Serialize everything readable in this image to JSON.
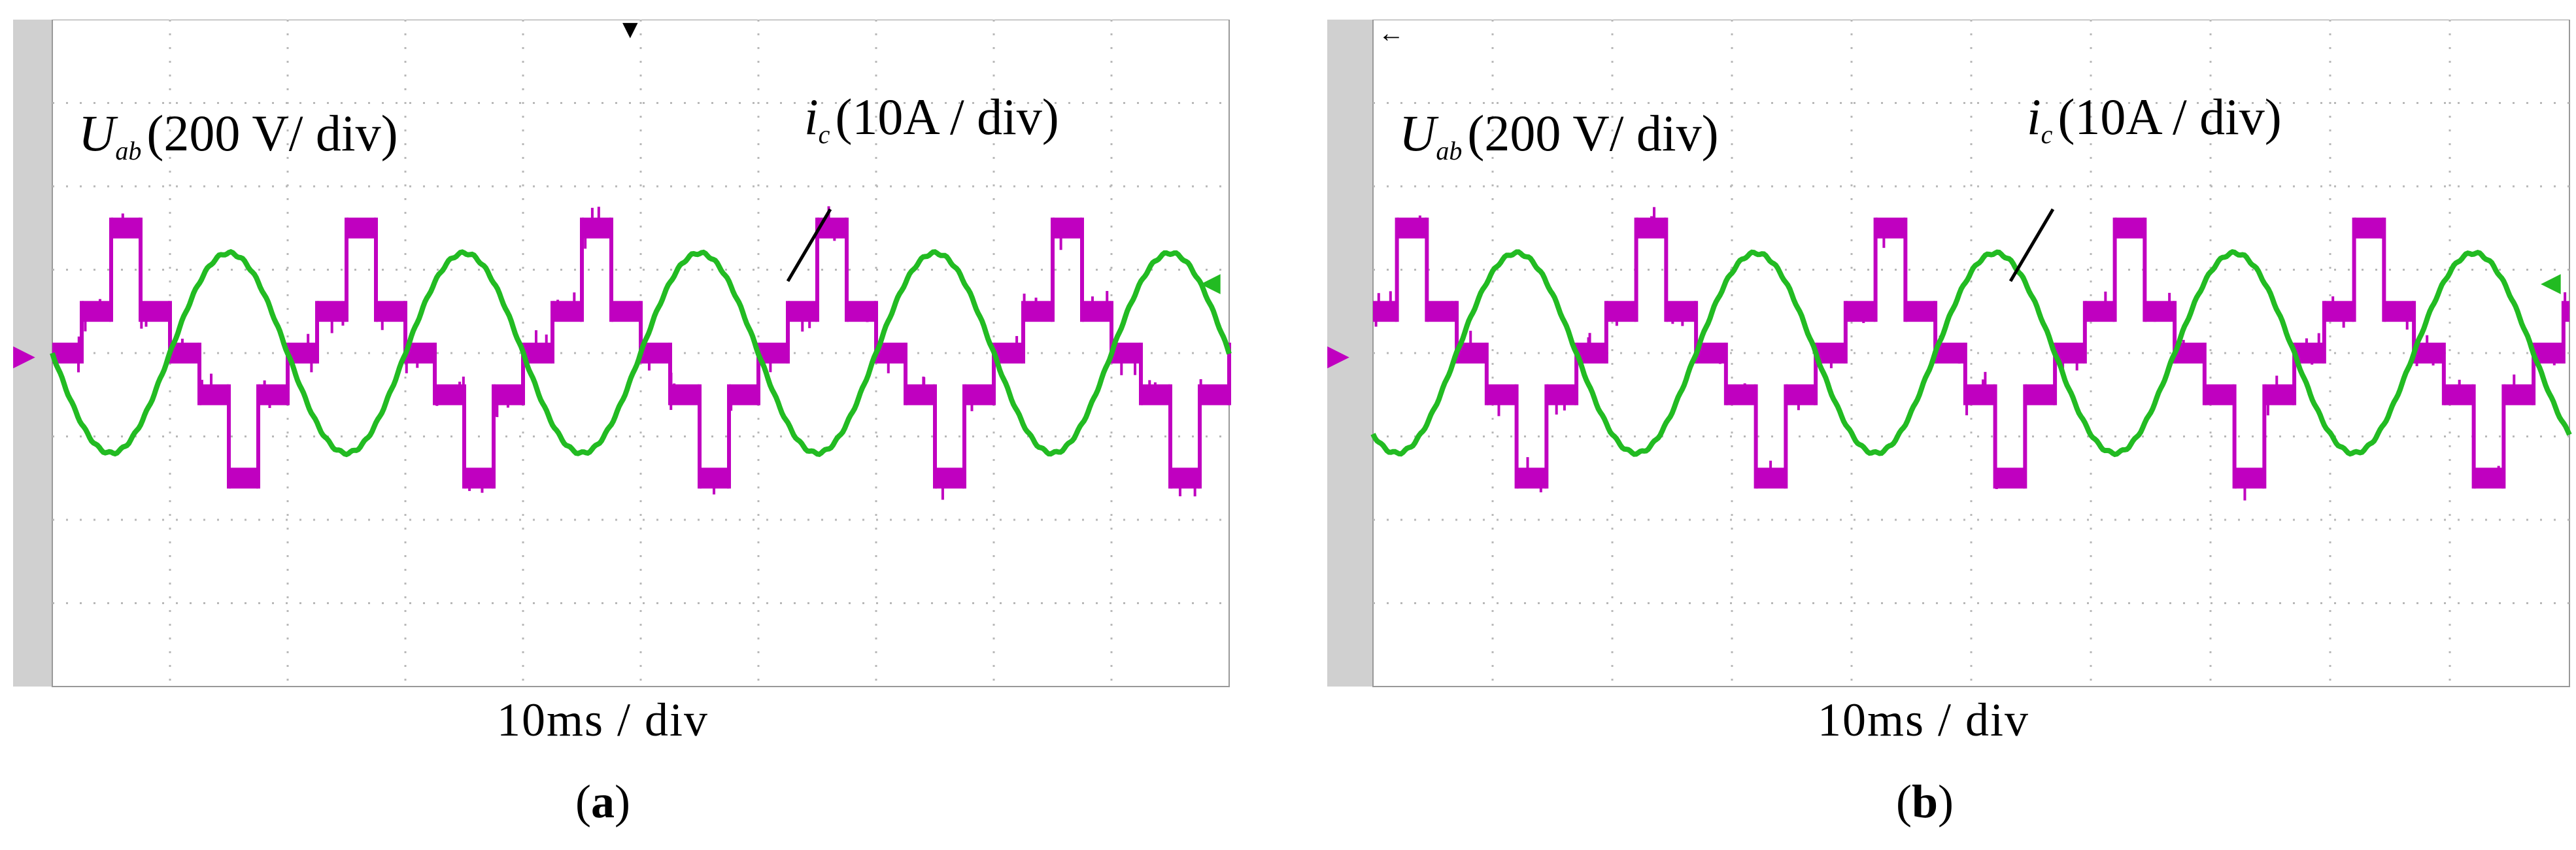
{
  "panels": [
    {
      "id": "a",
      "sublabel": "a",
      "timebase_label": "10ms / div",
      "voltage_label_main": "U",
      "voltage_label_sub": "ab",
      "voltage_label_scale": "(200 V/ div)",
      "current_label_main": "i",
      "current_label_sub": "c",
      "current_label_scale": "(10A / div)"
    },
    {
      "id": "b",
      "sublabel": "b",
      "timebase_label": "10ms / div",
      "voltage_label_main": "U",
      "voltage_label_sub": "ab",
      "voltage_label_scale": "(200 V/ div)",
      "current_label_main": "i",
      "current_label_sub": "c",
      "current_label_scale": "(10A / div)"
    }
  ],
  "colors": {
    "voltage_trace": "#c000c0",
    "current_trace": "#22bb22",
    "grid": "#b8b8b8",
    "scope_left_strip": "#d0d0d0"
  },
  "chart_data": [
    {
      "type": "line",
      "title": "",
      "xlabel": "10ms / div",
      "ylabel": "",
      "grid": true,
      "divisions": {
        "x": 10,
        "y": 8
      },
      "x_range_div": [
        0,
        10
      ],
      "y_range_div": [
        -4,
        4
      ],
      "series": [
        {
          "name": "U_ab (200 V/ div)",
          "kind": "multilevel-step",
          "period_div": 2.0,
          "phase_div": 0.0,
          "levels_div": [
            0,
            0.5,
            1.5,
            0.5,
            0,
            -0.5,
            -1.5,
            -0.5
          ],
          "noise_band_div": 0.25
        },
        {
          "name": "i_c (10A / div)",
          "kind": "sine",
          "period_div": 2.0,
          "amplitude_div": 1.2,
          "phase_div": 0.0
        }
      ]
    },
    {
      "type": "line",
      "title": "",
      "xlabel": "10ms / div",
      "ylabel": "",
      "grid": true,
      "divisions": {
        "x": 10,
        "y": 8
      },
      "x_range_div": [
        0,
        10
      ],
      "y_range_div": [
        -4,
        4
      ],
      "series": [
        {
          "name": "U_ab (200 V/ div)",
          "kind": "multilevel-step",
          "period_div": 2.0,
          "phase_div": 0.3,
          "levels_div": [
            0,
            0.5,
            1.5,
            0.5,
            0,
            -0.5,
            -1.5,
            -0.5
          ],
          "noise_band_div": 0.25
        },
        {
          "name": "i_c (10A / div)",
          "kind": "sine",
          "period_div": 2.0,
          "amplitude_div": 1.2,
          "phase_div": 0.3
        }
      ]
    }
  ]
}
